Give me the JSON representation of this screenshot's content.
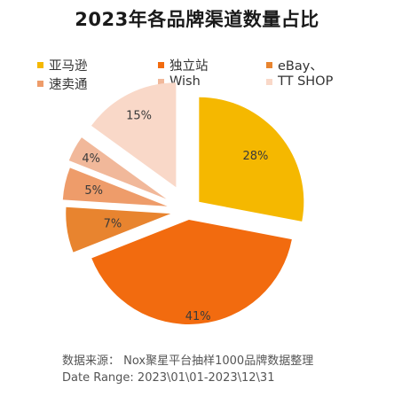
{
  "chart_data": {
    "type": "pie",
    "title": "2023年各品牌渠道数量占比",
    "series": [
      {
        "name": "亚马逊",
        "value": 28,
        "label": "28%",
        "color": "#F5B800"
      },
      {
        "name": "独立站",
        "value": 41,
        "label": "41%",
        "color": "#F26B0F"
      },
      {
        "name": "eBay、",
        "value": 7,
        "label": "7%",
        "color": "#E8842F"
      },
      {
        "name": "速卖通",
        "value": 5,
        "label": "5%",
        "color": "#EE9C6A"
      },
      {
        "name": "Wish",
        "value": 4,
        "label": "4%",
        "color": "#F1B89A"
      },
      {
        "name": "TT SHOP",
        "value": 15,
        "label": "15%",
        "color": "#F9D8C8"
      }
    ],
    "legend_position": "top"
  },
  "footer": {
    "source": "数据来源：  Nox聚星平台抽样1000品牌数据整理",
    "date_range": "Date Range:   2023\\01\\01-2023\\12\\31"
  }
}
